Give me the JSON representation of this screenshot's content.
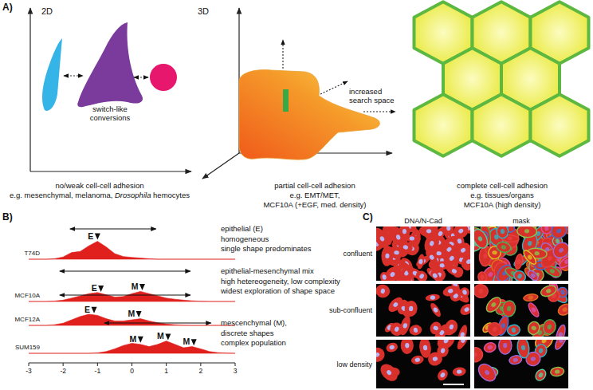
{
  "panel_a": {
    "label": "A)",
    "subpanels": [
      {
        "axis_label": "2D",
        "note": [
          "switch-like",
          "conversions"
        ],
        "caption": [
          "no/weak cell-cell adhesion",
          [
            {
              "text": "e.g. mesenchymal, melanoma, "
            },
            {
              "text": "Drosophila",
              "italic": true
            },
            {
              "text": " hemocytes"
            }
          ]
        ]
      },
      {
        "axis_label": "3D",
        "note": [
          "increased",
          "search space"
        ],
        "caption": [
          "partial cell-cell adhesion",
          "e.g. EMT/MET,",
          "MCF10A (+EGF, med. density)"
        ]
      },
      {
        "caption": [
          "complete cell-cell adhesion",
          "e.g. tissues/organs",
          "MCF10A (high density)"
        ]
      }
    ]
  },
  "chart_data": {
    "type": "ridgeline",
    "title": "B)",
    "x": [
      -3,
      -2.75,
      -2.5,
      -2.25,
      -2,
      -1.75,
      -1.5,
      -1.25,
      -1,
      -0.75,
      -0.5,
      -0.25,
      0,
      0.25,
      0.5,
      0.75,
      1,
      1.25,
      1.5,
      1.75,
      2,
      2.25,
      2.5,
      2.75,
      3
    ],
    "xlim": [
      -3,
      3
    ],
    "xticks": [
      -3,
      -2,
      -1,
      0,
      1,
      2,
      3
    ],
    "ylim": [
      0,
      1
    ],
    "tick_labels": "x",
    "series": [
      {
        "name": "T74D",
        "color": "#e0201c",
        "values": [
          0,
          0,
          0,
          0.02,
          0.1,
          0.3,
          0.35,
          0.6,
          0.8,
          0.55,
          0.25,
          0.12,
          0.08,
          0.05,
          0.02,
          0,
          0,
          0,
          0,
          0,
          0,
          0,
          0,
          0,
          0
        ],
        "range": [
          -1.8,
          0.7
        ],
        "peaks": [
          {
            "x": -1,
            "label": "E"
          }
        ],
        "description": [
          "epithelial (E)",
          "homogeneous",
          "single shape predominates"
        ]
      },
      {
        "name": "MCF10A",
        "color": "#e0201c",
        "values": [
          0,
          0,
          0,
          0.02,
          0.06,
          0.15,
          0.25,
          0.35,
          0.4,
          0.3,
          0.2,
          0.22,
          0.35,
          0.45,
          0.35,
          0.25,
          0.15,
          0.1,
          0.06,
          0.03,
          0.01,
          0,
          0,
          0,
          0
        ],
        "range": [
          -2.1,
          1.7
        ],
        "peaks": [
          {
            "x": -0.9,
            "label": "E"
          },
          {
            "x": 0.3,
            "label": "M"
          }
        ],
        "description": [
          "epithelial-mesenchymal mix",
          "high hetereogeneity, low complexity",
          "widest exploration of shape space"
        ]
      },
      {
        "name": "MCF12A",
        "color": "#e0201c",
        "values": [
          0,
          0,
          0,
          0.03,
          0.1,
          0.25,
          0.4,
          0.5,
          0.45,
          0.3,
          0.2,
          0.2,
          0.25,
          0.3,
          0.2,
          0.12,
          0.06,
          0.03,
          0.01,
          0,
          0,
          0,
          0,
          0,
          0
        ],
        "range": [
          -2.1,
          1.7
        ],
        "peaks": [
          {
            "x": -1.1,
            "label": "E"
          },
          {
            "x": 0.2,
            "label": "M"
          }
        ]
      },
      {
        "name": "SUM159",
        "color": "#e0201c",
        "values": [
          0,
          0,
          0,
          0,
          0,
          0,
          0,
          0,
          0.02,
          0.08,
          0.2,
          0.35,
          0.45,
          0.4,
          0.3,
          0.4,
          0.55,
          0.4,
          0.25,
          0.3,
          0.2,
          0.08,
          0.03,
          0.01,
          0
        ],
        "range": [
          -0.8,
          2.3
        ],
        "peaks": [
          {
            "x": 0.25,
            "label": "M"
          },
          {
            "x": 1.05,
            "label": "M"
          },
          {
            "x": 1.8,
            "label": "M"
          }
        ],
        "description": [
          "mescenchymal (M),",
          "discrete shapes",
          "complex population"
        ]
      }
    ]
  },
  "panel_c": {
    "label": "C)",
    "columns": [
      "DNA/N-Cad",
      "mask"
    ],
    "rows": [
      "confluent",
      "sub-confluent",
      "low density"
    ]
  }
}
